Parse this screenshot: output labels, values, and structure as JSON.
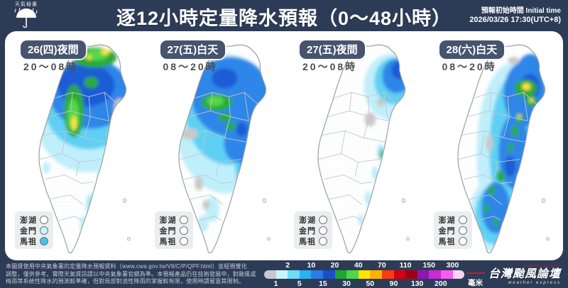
{
  "header": {
    "title": "逐12小時定量降水預報（0～48小時）",
    "logo_text": "天氣秘書",
    "initial_time_label": "預報初始時間 Initial time",
    "initial_time_value": "2026/03/26  17:30(UTC+8)"
  },
  "island_labels": [
    "澎湖",
    "金門",
    "馬祖"
  ],
  "panels": [
    {
      "badge": "26(四)夜間",
      "time": "20～08時",
      "islands": [
        "#ffffff",
        "#cdf3fb",
        "#3fc6e8"
      ]
    },
    {
      "badge": "27(五)白天",
      "time": "08～20時",
      "islands": [
        "#ffffff",
        "#ffffff",
        "#ffffff"
      ]
    },
    {
      "badge": "27(五)夜間",
      "time": "20～08時",
      "islands": [
        "#ffffff",
        "#ffffff",
        "#ffffff"
      ]
    },
    {
      "badge": "28(六)白天",
      "time": "08～20時",
      "islands": [
        "#ffffff",
        "#ffffff",
        "#ffffff"
      ]
    }
  ],
  "footer": {
    "disclaimer_lines": [
      "本圖資使用中央氣象署的定量降水預報資料（www.cwa.gov.tw/V8/C/P/QPF.html）並經視覺化",
      "調整，僅供參考。實際天氣資訊請以中央氣象署官網為準。本預報產品仍在技術發展中，對颱風或",
      "梅雨等系統性降水的預測較準確，但對局部對流性降雨的掌握較有限，使用時請留意其限制。"
    ],
    "legend": {
      "unit": "毫米",
      "values_top": [
        "2",
        "10",
        "20",
        "40",
        "70",
        "110",
        "150",
        "300"
      ],
      "values_bottom": [
        "1",
        "5",
        "15",
        "30",
        "50",
        "90",
        "130",
        "200"
      ],
      "colors": [
        "#c8c8c8",
        "#c9f6fd",
        "#6fdcf8",
        "#29b1f1",
        "#2a7ae9",
        "#1c4ecb",
        "#1fa434",
        "#4ed648",
        "#ffe400",
        "#ffb300",
        "#f63c10",
        "#d40014",
        "#a00016",
        "#8e17ae",
        "#cb2ad4",
        "#f45ef0",
        "#fad4f5"
      ]
    },
    "brand": {
      "name": "台灣颱風論壇",
      "sub": "weather express",
      "accent": "#c21d2c"
    }
  },
  "map_colors": {
    "trace_gray": "#c9c9c9",
    "pale_cyan": "#bfeffb",
    "cyan": "#5fd0f3",
    "blue": "#2e86e8",
    "deep_blue": "#1d5cd4",
    "green": "#2aab38",
    "bright_green": "#55d74a",
    "yellow": "#ffe23c"
  }
}
